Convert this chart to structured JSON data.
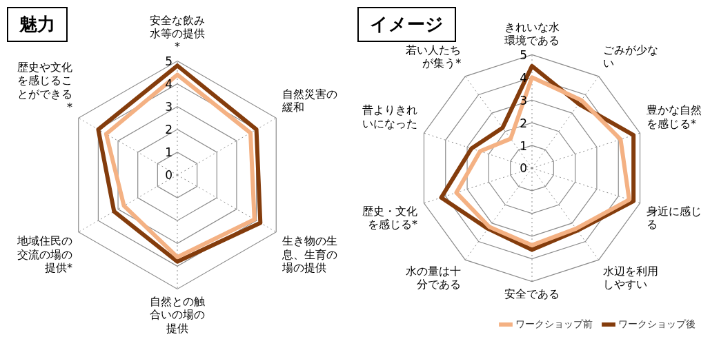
{
  "chart_data": [
    {
      "type": "radar",
      "title": "魅力",
      "categories": [
        "安全な飲み水等の提供*",
        "自然災害の緩和",
        "生き物の生息、生育の場の提供",
        "自然との触合いの場の提供",
        "地域住民の交流の場の提供*",
        "歴史や文化を感じることができる*"
      ],
      "series": [
        {
          "color": "#f4b183",
          "values": [
            4.4,
            3.7,
            3.9,
            3.6,
            2.7,
            3.6
          ]
        },
        {
          "color": "#843c0c",
          "values": [
            4.8,
            4.0,
            4.2,
            3.8,
            3.2,
            4.0
          ]
        }
      ],
      "ylim": [
        0,
        5
      ],
      "yticks": [
        0,
        1,
        2,
        3,
        4,
        5
      ],
      "grid": true,
      "legend": false,
      "marker": "none"
    },
    {
      "type": "radar",
      "title": "イメージ",
      "categories": [
        "きれいな水環境である",
        "ごみが少ない",
        "豊かな自然を感じる*",
        "身近に感じる",
        "水辺を利用しやすい",
        "安全である",
        "水の量は十分である",
        "歴史・文化を感じる*",
        "昔よりきれいになった",
        "若い人たちが集う*"
      ],
      "series": [
        {
          "name": "ワークショップ前",
          "color": "#f4b183",
          "values": [
            4.0,
            3.7,
            4.1,
            4.5,
            3.3,
            3.4,
            3.2,
            3.5,
            2.4,
            1.6
          ]
        },
        {
          "name": "ワークショップ後",
          "color": "#843c0c",
          "values": [
            4.5,
            3.5,
            4.7,
            4.7,
            3.4,
            3.6,
            3.3,
            4.2,
            2.8,
            2.2
          ]
        }
      ],
      "ylim": [
        0,
        5
      ],
      "yticks": [
        0,
        1,
        2,
        3,
        4,
        5
      ],
      "grid": true,
      "legend": "bottom",
      "marker": "none"
    }
  ]
}
